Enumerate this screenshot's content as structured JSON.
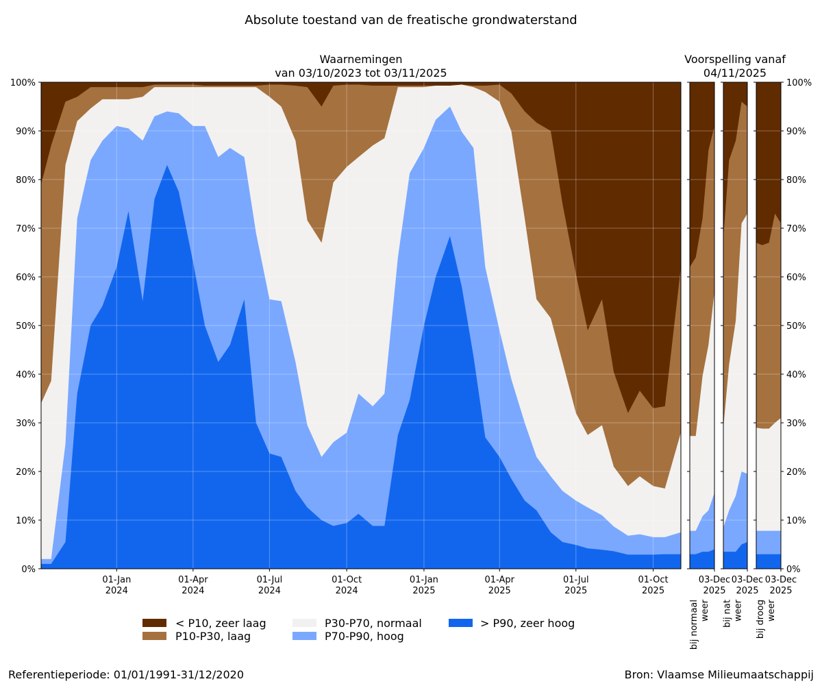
{
  "title": "Absolute toestand van de freatische grondwaterstand",
  "observed_title": [
    "Waarnemingen",
    "van 03/10/2023 tot 03/11/2025"
  ],
  "forecast_title": [
    "Voorspelling vanaf",
    "04/11/2025"
  ],
  "footer_left": "Referentieperiode: 01/01/1991-31/12/2020",
  "footer_right": "Bron: Vlaamse Milieumaatschappij",
  "colors": {
    "zeer_laag": "#612b00",
    "laag": "#a5713f",
    "normaal": "#f2f1f0",
    "hoog": "#7aa8ff",
    "zeer_hoog": "#1266ee"
  },
  "legend": [
    {
      "label": "< P10, zeer laag",
      "color": "#612b00"
    },
    {
      "label": "P10-P30, laag",
      "color": "#a5713f"
    },
    {
      "label": "P30-P70, normaal",
      "color": "#f2f1f0"
    },
    {
      "label": "P70-P90, hoog",
      "color": "#7aa8ff"
    },
    {
      "label": "> P90, zeer hoog",
      "color": "#1266ee"
    }
  ],
  "chart_data": [
    {
      "type": "area",
      "stacked": true,
      "title": "Waarnemingen van 03/10/2023 tot 03/11/2025",
      "x_range": [
        "2023-10-03",
        "2025-11-03"
      ],
      "ylim": [
        0,
        100
      ],
      "y_unit": "%",
      "grid": true,
      "y_ticks": [
        "0%",
        "10%",
        "20%",
        "30%",
        "40%",
        "50%",
        "60%",
        "70%",
        "80%",
        "90%",
        "100%"
      ],
      "x_ticks": [
        {
          "date": "2024-01-01",
          "label": [
            "01-Jan",
            "2024"
          ]
        },
        {
          "date": "2024-04-01",
          "label": [
            "01-Apr",
            "2024"
          ]
        },
        {
          "date": "2024-07-01",
          "label": [
            "01-Jul",
            "2024"
          ]
        },
        {
          "date": "2024-10-01",
          "label": [
            "01-Oct",
            "2024"
          ]
        },
        {
          "date": "2025-01-01",
          "label": [
            "01-Jan",
            "2025"
          ]
        },
        {
          "date": "2025-04-01",
          "label": [
            "01-Apr",
            "2025"
          ]
        },
        {
          "date": "2025-07-01",
          "label": [
            "01-Jul",
            "2025"
          ]
        },
        {
          "date": "2025-10-01",
          "label": [
            "01-Oct",
            "2025"
          ]
        }
      ],
      "boundary_note": "cumulative upper bounds (%) of > P90, P70-P90, P30-P70, P10-P30; remainder up to 100% is < P10",
      "dates": [
        "2023-10-03",
        "2023-10-15",
        "2023-11-01",
        "2023-11-15",
        "2023-12-01",
        "2023-12-15",
        "2024-01-01",
        "2024-01-15",
        "2024-02-01",
        "2024-02-15",
        "2024-03-01",
        "2024-03-15",
        "2024-04-01",
        "2024-04-15",
        "2024-05-01",
        "2024-05-15",
        "2024-06-01",
        "2024-06-15",
        "2024-07-01",
        "2024-07-15",
        "2024-08-01",
        "2024-08-15",
        "2024-09-01",
        "2024-09-15",
        "2024-10-01",
        "2024-10-15",
        "2024-11-01",
        "2024-11-15",
        "2024-12-01",
        "2024-12-15",
        "2025-01-01",
        "2025-01-15",
        "2025-02-01",
        "2025-02-15",
        "2025-03-01",
        "2025-03-15",
        "2025-04-01",
        "2025-04-15",
        "2025-05-01",
        "2025-05-15",
        "2025-06-01",
        "2025-06-15",
        "2025-07-01",
        "2025-07-15",
        "2025-08-01",
        "2025-08-15",
        "2025-09-01",
        "2025-09-15",
        "2025-10-01",
        "2025-10-15",
        "2025-11-03"
      ],
      "series": [
        {
          "name": "> P90, zeer hoog",
          "upper": [
            1,
            1,
            5.5,
            36,
            50,
            54,
            62,
            73.5,
            55,
            76,
            83,
            77.5,
            63,
            50,
            42.5,
            46,
            55.4,
            30,
            23.7,
            23,
            16,
            12.6,
            10,
            8.8,
            9.4,
            11.3,
            8.8,
            8.8,
            27.5,
            34.7,
            50,
            60,
            68.4,
            58,
            43.7,
            27,
            23,
            18.5,
            14,
            12,
            7.5,
            5.5,
            4.9,
            4.2,
            3.9,
            3.6,
            2.9,
            2.9,
            2.9,
            3,
            3
          ]
        },
        {
          "name": "P70-P90, hoog",
          "upper": [
            2,
            2,
            25.6,
            72,
            84,
            88,
            91,
            90.5,
            88,
            93,
            94,
            93.6,
            91,
            91,
            84.6,
            86.5,
            84.6,
            69,
            55.4,
            55,
            42.5,
            29.5,
            23,
            26,
            28,
            36,
            33.4,
            36,
            64,
            81.3,
            86.5,
            92.3,
            95,
            89.8,
            86.5,
            62,
            49,
            39,
            30,
            23,
            19,
            16,
            14,
            12.6,
            11,
            8.7,
            6.8,
            7.1,
            6.5,
            6.5,
            7.5
          ]
        },
        {
          "name": "P30-P70, normaal",
          "upper": [
            34,
            38.6,
            83,
            92,
            94.6,
            96.5,
            96.5,
            96.5,
            97,
            99,
            99,
            99,
            99,
            99,
            99,
            99,
            99,
            99,
            97,
            95,
            88,
            71.6,
            67,
            79.4,
            82.6,
            84.6,
            87,
            88.5,
            99,
            99,
            99,
            99.3,
            99.3,
            99.5,
            99,
            98,
            96,
            90,
            72,
            55.4,
            51.5,
            42.5,
            32,
            27.5,
            29.5,
            21,
            17,
            19,
            17,
            16.5,
            28
          ]
        },
        {
          "name": "P10-P30, laag",
          "upper": [
            79,
            87,
            96,
            97,
            99,
            99,
            99,
            99,
            99,
            99.5,
            99.5,
            99.5,
            99.5,
            99.3,
            99.3,
            99.3,
            99.3,
            99.3,
            99.5,
            99.5,
            99.3,
            99,
            95,
            99.3,
            99.5,
            99.5,
            99.3,
            99.3,
            99.3,
            99.3,
            99.3,
            99.3,
            99.3,
            99.5,
            99.3,
            99.3,
            99.5,
            97.7,
            94,
            91.7,
            90,
            75,
            60.6,
            49,
            55.4,
            40.5,
            32,
            36.6,
            33,
            33.4,
            62
          ]
        }
      ]
    },
    {
      "type": "area",
      "stacked": true,
      "scenario": [
        "bij normaal",
        "weer"
      ],
      "x_range": [
        "2025-11-04",
        "2025-12-03"
      ],
      "x_ticks": [
        {
          "date": "2025-12-03",
          "label": [
            "03-Dec",
            "2025"
          ]
        }
      ],
      "ylim": [
        0,
        100
      ],
      "dates": [
        "2025-11-04",
        "2025-11-11",
        "2025-11-19",
        "2025-11-26",
        "2025-12-03"
      ],
      "series": [
        {
          "name": "> P90, zeer hoog",
          "upper": [
            3,
            3,
            3.5,
            3.5,
            4
          ]
        },
        {
          "name": "P70-P90, hoog",
          "upper": [
            7.8,
            7.8,
            10.8,
            12,
            15.6
          ]
        },
        {
          "name": "P30-P70, normaal",
          "upper": [
            27.3,
            27.3,
            39.6,
            46,
            57
          ]
        },
        {
          "name": "P10-P30, laag",
          "upper": [
            62,
            64,
            72,
            86,
            91
          ]
        }
      ]
    },
    {
      "type": "area",
      "stacked": true,
      "scenario": [
        "bij nat",
        "weer"
      ],
      "x_range": [
        "2025-11-04",
        "2025-12-03"
      ],
      "x_ticks": [
        {
          "date": "2025-12-03",
          "label": [
            "03-Dec",
            "2025"
          ]
        }
      ],
      "ylim": [
        0,
        100
      ],
      "dates": [
        "2025-11-04",
        "2025-11-11",
        "2025-11-19",
        "2025-11-26",
        "2025-12-03"
      ],
      "series": [
        {
          "name": "> P90, zeer hoog",
          "upper": [
            3.5,
            3.5,
            3.5,
            5,
            5.5
          ]
        },
        {
          "name": "P70-P90, hoog",
          "upper": [
            8.5,
            12,
            15,
            20,
            19.5
          ]
        },
        {
          "name": "P30-P70, normaal",
          "upper": [
            29,
            42,
            51,
            71,
            73
          ]
        },
        {
          "name": "P10-P30, laag",
          "upper": [
            68,
            84,
            88,
            96,
            95
          ]
        }
      ]
    },
    {
      "type": "area",
      "stacked": true,
      "scenario": [
        "bij droog",
        "weer"
      ],
      "x_range": [
        "2025-11-04",
        "2025-12-03"
      ],
      "x_ticks": [
        {
          "date": "2025-12-03",
          "label": [
            "03-Dec",
            "2025"
          ]
        }
      ],
      "ylim": [
        0,
        100
      ],
      "y_ticks": [
        "0%",
        "10%",
        "20%",
        "30%",
        "40%",
        "50%",
        "60%",
        "70%",
        "80%",
        "90%",
        "100%"
      ],
      "dates": [
        "2025-11-04",
        "2025-11-11",
        "2025-11-19",
        "2025-11-26",
        "2025-12-03"
      ],
      "series": [
        {
          "name": "> P90, zeer hoog",
          "upper": [
            3,
            3,
            3,
            3,
            3
          ]
        },
        {
          "name": "P70-P90, hoog",
          "upper": [
            7.8,
            7.8,
            7.8,
            7.8,
            7.8
          ]
        },
        {
          "name": "P30-P70, normaal",
          "upper": [
            29,
            28.8,
            28.8,
            30,
            31
          ]
        },
        {
          "name": "P10-P30, laag",
          "upper": [
            67,
            66.5,
            67,
            73,
            71
          ]
        }
      ]
    }
  ]
}
